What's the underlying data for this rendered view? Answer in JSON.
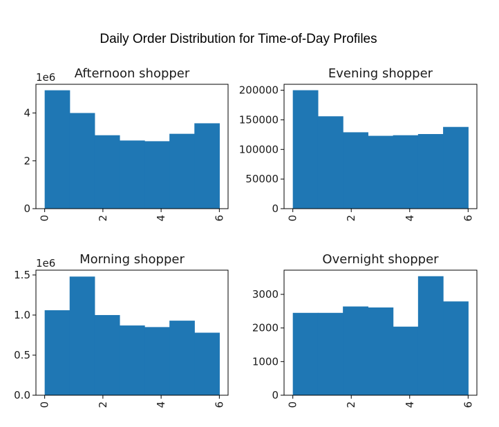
{
  "figure_title": "Daily Order Distribution for Time-of-Day Profiles",
  "chart_data": [
    {
      "type": "bar",
      "title": "Afternoon shopper",
      "xlabel": "",
      "ylabel": "",
      "offset_label": "1e6",
      "x_bin_edges": [
        0,
        0.857,
        1.714,
        2.571,
        3.429,
        4.286,
        5.143,
        6
      ],
      "values": [
        4.95,
        4.0,
        3.07,
        2.85,
        2.82,
        3.13,
        3.57
      ],
      "xlim": [
        -0.3,
        6.3
      ],
      "ylim": [
        0,
        5.2
      ],
      "xticks": [
        0,
        2,
        4,
        6
      ],
      "xtick_labels": [
        "0",
        "2",
        "4",
        "6"
      ],
      "yticks": [
        0,
        2,
        4
      ],
      "ytick_labels": [
        "0",
        "2",
        "4"
      ],
      "color": "#1f77b4"
    },
    {
      "type": "bar",
      "title": "Evening shopper",
      "xlabel": "",
      "ylabel": "",
      "offset_label": "",
      "x_bin_edges": [
        0,
        0.857,
        1.714,
        2.571,
        3.429,
        4.286,
        5.143,
        6
      ],
      "values": [
        200000,
        156000,
        129000,
        123000,
        124000,
        126000,
        138000
      ],
      "xlim": [
        -0.3,
        6.3
      ],
      "ylim": [
        0,
        210000
      ],
      "xticks": [
        0,
        2,
        4,
        6
      ],
      "xtick_labels": [
        "0",
        "2",
        "4",
        "6"
      ],
      "yticks": [
        0,
        50000,
        100000,
        150000,
        200000
      ],
      "ytick_labels": [
        "0",
        "50000",
        "100000",
        "150000",
        "200000"
      ],
      "color": "#1f77b4"
    },
    {
      "type": "bar",
      "title": "Morning shopper",
      "xlabel": "",
      "ylabel": "",
      "offset_label": "1e6",
      "x_bin_edges": [
        0,
        0.857,
        1.714,
        2.571,
        3.429,
        4.286,
        5.143,
        6
      ],
      "values": [
        1.06,
        1.48,
        1.0,
        0.87,
        0.85,
        0.93,
        0.78
      ],
      "xlim": [
        -0.3,
        6.3
      ],
      "ylim": [
        0,
        1.56
      ],
      "xticks": [
        0,
        2,
        4,
        6
      ],
      "xtick_labels": [
        "0",
        "2",
        "4",
        "6"
      ],
      "yticks": [
        0,
        0.5,
        1.0,
        1.5
      ],
      "ytick_labels": [
        "0.0",
        "0.5",
        "1.0",
        "1.5"
      ],
      "color": "#1f77b4"
    },
    {
      "type": "bar",
      "title": "Overnight shopper",
      "xlabel": "",
      "ylabel": "",
      "offset_label": "",
      "x_bin_edges": [
        0,
        0.857,
        1.714,
        2.571,
        3.429,
        4.286,
        5.143,
        6
      ],
      "values": [
        2450,
        2450,
        2640,
        2610,
        2040,
        3540,
        2790
      ],
      "xlim": [
        -0.3,
        6.3
      ],
      "ylim": [
        0,
        3720
      ],
      "xticks": [
        0,
        2,
        4,
        6
      ],
      "xtick_labels": [
        "0",
        "2",
        "4",
        "6"
      ],
      "yticks": [
        0,
        1000,
        2000,
        3000
      ],
      "ytick_labels": [
        "0",
        "1000",
        "2000",
        "3000"
      ],
      "color": "#1f77b4"
    }
  ]
}
